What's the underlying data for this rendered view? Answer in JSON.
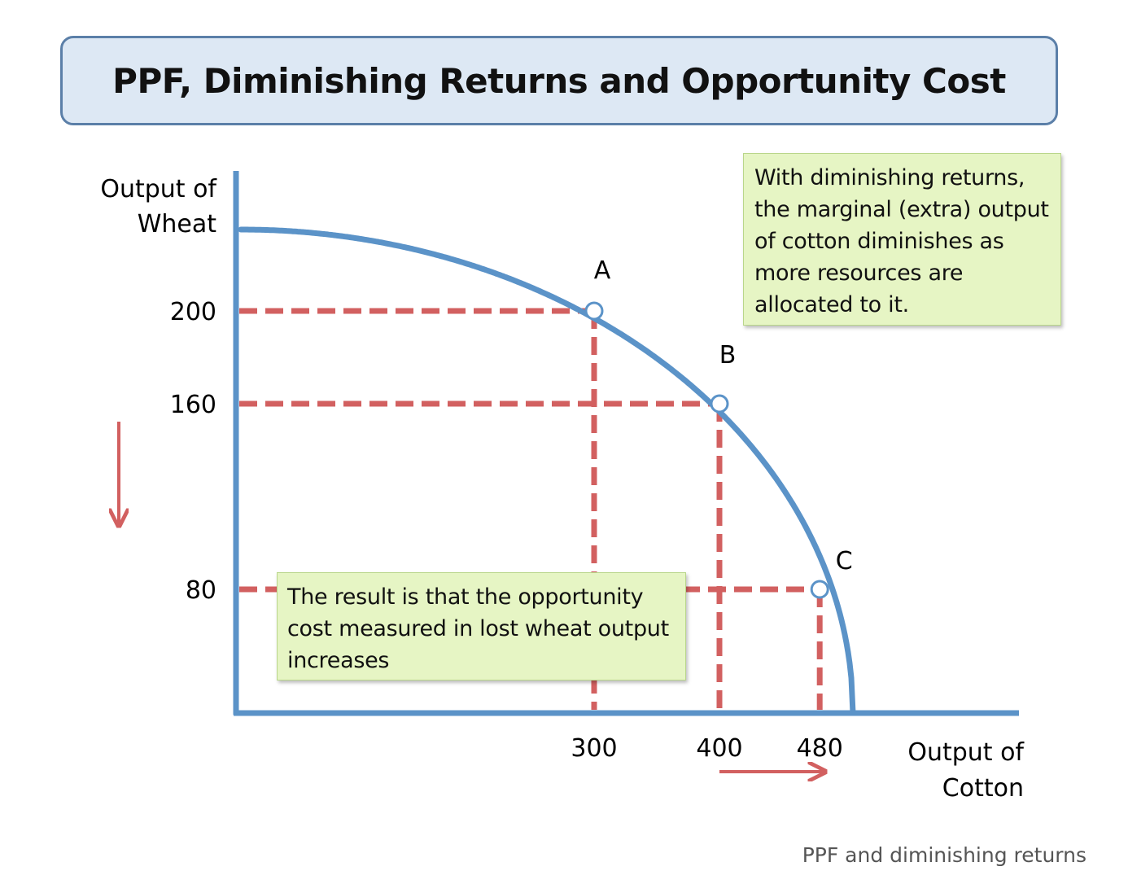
{
  "chart_data": {
    "type": "line",
    "title": "PPF, Diminishing Returns and Opportunity Cost",
    "xlabel": [
      "Output of",
      "Cotton"
    ],
    "ylabel": [
      "Output of",
      "Wheat"
    ],
    "x_ticks": [
      "300",
      "400",
      "480"
    ],
    "y_ticks": [
      "200",
      "160",
      "80"
    ],
    "points": [
      {
        "label": "A",
        "x": 300,
        "y": 200
      },
      {
        "label": "B",
        "x": 400,
        "y": 160
      },
      {
        "label": "C",
        "x": 480,
        "y": 80
      }
    ],
    "annotations": {
      "top_right": [
        "With diminishing returns,",
        "the marginal (extra) output",
        "of cotton diminishes as",
        "more resources are",
        "allocated to it."
      ],
      "bottom_left": [
        "The result is that the opportunity",
        "cost measured in lost wheat output",
        "increases"
      ]
    },
    "colors": {
      "curve": "#5b93c8",
      "axis": "#5b93c8",
      "guides": "#d26060",
      "arrows": "#d26060"
    },
    "arrows": [
      "down-arrow beside wheat axis",
      "right-arrow below cotton axis"
    ]
  },
  "caption": "PPF and diminishing returns"
}
